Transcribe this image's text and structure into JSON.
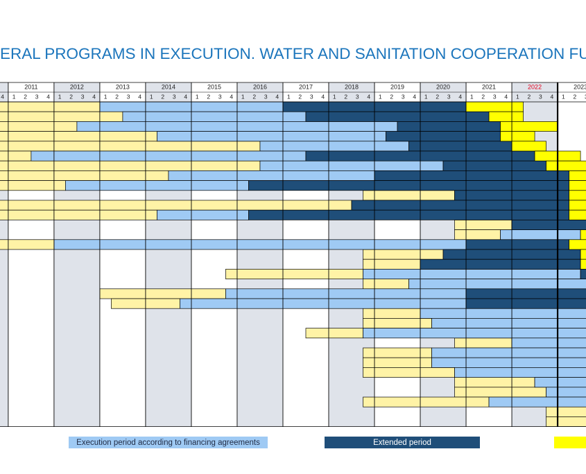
{
  "chart_data": {
    "type": "gantt",
    "title": "ERAL PROGRAMS IN EXECUTION. WATER AND SANITATION COOPERATION FUND",
    "xlim": [
      2010.82,
      2023.62
    ],
    "xticks": [
      2011,
      2012,
      2013,
      2014,
      2015,
      2016,
      2017,
      2018,
      2019,
      2020,
      2021,
      2022,
      2023
    ],
    "quarters": [
      "1",
      "2",
      "3",
      "4"
    ],
    "highlight": {
      "index": 11,
      "color": "#e3001b"
    },
    "current_date": 2023.0,
    "series": [
      {
        "color": "#fff3a6",
        "starts": [
          2010.75,
          2010.75,
          2010.75,
          2010.75,
          2010.75,
          2010.75,
          2010.75,
          2010.75,
          2010.75,
          2018.75,
          2010.75,
          2010.75,
          2020.75,
          2020.75,
          2010.75,
          2018.75,
          2018.75,
          2015.75,
          2018.75,
          2013,
          2013.25,
          2018.75,
          2018.75,
          2017.5,
          2020.75,
          2018.75,
          2018.75,
          2018.75,
          2020.75,
          2020.75,
          2018.75,
          2022.75,
          2022.75
        ],
        "ends": [
          2013,
          2013.5,
          2012.5,
          2014.25,
          2016.5,
          2011.5,
          2016.5,
          2014.5,
          2012.25,
          2020.75,
          2018.5,
          2014.25,
          2022,
          2021.75,
          2012,
          2020.5,
          2020,
          2018.75,
          2019.75,
          2015.75,
          2014.75,
          2020,
          2020.25,
          2018.75,
          2022,
          2020.25,
          2020.25,
          2020.75,
          2022.5,
          2022.75,
          2021.5,
          2023.75,
          2023.75
        ]
      },
      {
        "name": "Execution period according to financing agreements",
        "color": "#9fcaf4",
        "starts": [
          2013,
          2013.5,
          2012.5,
          2014.25,
          2016.5,
          2011.5,
          2016.5,
          2014.5,
          2012.25,
          null,
          null,
          2014.25,
          null,
          2021.75,
          2012,
          null,
          null,
          2018.75,
          2019.75,
          2015.75,
          2014.75,
          2020,
          2020.25,
          2018.75,
          2022,
          2020.25,
          2020.25,
          2020.75,
          2022.5,
          2022.75,
          2021.5,
          null,
          null
        ],
        "ends": [
          2017,
          2017.5,
          2019.5,
          2019.25,
          2019.75,
          2017.5,
          2020.5,
          2019,
          2016.25,
          null,
          null,
          2016.25,
          null,
          2023.5,
          2021,
          null,
          null,
          2023.5,
          2023.75,
          2021,
          2021,
          2023.75,
          2023.75,
          2023.75,
          2023.75,
          2023.75,
          2023.75,
          2023.75,
          2023.75,
          2023.75,
          2023.75,
          null,
          null
        ]
      },
      {
        "name": "Extended period",
        "color": "#1f4e79",
        "starts": [
          2017,
          2017.5,
          2019.5,
          2019.25,
          2019.75,
          2017.5,
          2020.5,
          2019,
          2016.25,
          2020.75,
          2018.5,
          2016.25,
          2022,
          null,
          2021,
          2020.5,
          2020,
          2023.5,
          null,
          2021,
          2021,
          null,
          null,
          null,
          null,
          null,
          null,
          null,
          null,
          null,
          null,
          null,
          null
        ],
        "ends": [
          2021,
          2021.5,
          2021.75,
          2021.75,
          2022,
          2022.5,
          2022.75,
          2023.25,
          2023.25,
          2023.25,
          2023.25,
          2023.25,
          2023.75,
          null,
          2023.25,
          2023.5,
          2023.5,
          2023.75,
          null,
          2023.75,
          2023.75,
          null,
          null,
          null,
          null,
          null,
          null,
          null,
          null,
          null,
          null,
          null,
          null
        ]
      },
      {
        "color": "#ffff00",
        "starts": [
          2021,
          2021.5,
          2021.75,
          2021.75,
          2022,
          2022.5,
          2022.75,
          2023.25,
          2023.25,
          2023.25,
          2023.25,
          2023.25,
          null,
          2023.5,
          2023.25,
          2023.5,
          2023.5,
          null,
          null,
          null,
          null,
          null,
          null,
          null,
          null,
          null,
          null,
          null,
          null,
          null,
          null,
          null,
          null
        ],
        "ends": [
          2022.25,
          2022.25,
          2023,
          2022.5,
          2022.75,
          2023.5,
          2023.75,
          2023.75,
          2023.75,
          2023.75,
          2023.75,
          2023.75,
          null,
          2023.75,
          2023.75,
          2023.75,
          2023.75,
          null,
          null,
          null,
          null,
          null,
          null,
          null,
          null,
          null,
          null,
          null,
          null,
          null,
          null,
          null,
          null
        ]
      }
    ]
  }
}
